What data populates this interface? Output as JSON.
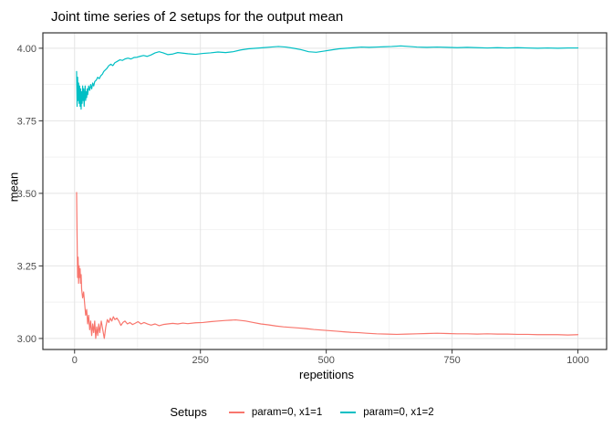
{
  "chart_data": {
    "type": "line",
    "title": "Joint time series of 2 setups for the output mean",
    "xlabel": "repetitions",
    "ylabel": "mean",
    "legend_title": "Setups",
    "legend_position": "bottom",
    "grid": true,
    "xlim": [
      -63,
      1057
    ],
    "ylim": [
      2.962,
      4.053
    ],
    "x_ticks": {
      "values": [
        0,
        250,
        500,
        750,
        1000
      ],
      "labels": [
        "0",
        "250",
        "500",
        "750",
        "1000"
      ]
    },
    "y_ticks": {
      "values": [
        3.0,
        3.25,
        3.5,
        3.75,
        4.0
      ],
      "labels": [
        "3.00",
        "3.25",
        "3.50",
        "3.75",
        "4.00"
      ]
    },
    "x_minor_ticks": [
      125,
      375,
      625,
      875
    ],
    "y_minor_ticks": [
      3.125,
      3.375,
      3.625,
      3.875
    ],
    "series": [
      {
        "name": "param=0, x1=1",
        "color": "#F8766D",
        "points": [
          [
            4,
            3.503
          ],
          [
            5,
            3.35
          ],
          [
            6,
            3.21
          ],
          [
            7,
            3.28
          ],
          [
            8,
            3.19
          ],
          [
            9,
            3.25
          ],
          [
            10,
            3.21
          ],
          [
            11,
            3.24
          ],
          [
            12,
            3.19
          ],
          [
            13,
            3.22
          ],
          [
            14,
            3.17
          ],
          [
            16,
            3.14
          ],
          [
            18,
            3.16
          ],
          [
            20,
            3.12
          ],
          [
            22,
            3.08
          ],
          [
            24,
            3.1
          ],
          [
            26,
            3.05
          ],
          [
            28,
            3.08
          ],
          [
            30,
            3.03
          ],
          [
            32,
            3.06
          ],
          [
            34,
            3.01
          ],
          [
            36,
            3.05
          ],
          [
            38,
            3.02
          ],
          [
            40,
            3.06
          ],
          [
            42,
            3.0
          ],
          [
            44,
            3.04
          ],
          [
            46,
            3.01
          ],
          [
            48,
            3.05
          ],
          [
            50,
            3.02
          ],
          [
            53,
            3.06
          ],
          [
            56,
            3.03
          ],
          [
            59,
            3.0
          ],
          [
            62,
            3.04
          ],
          [
            65,
            3.065
          ],
          [
            68,
            3.055
          ],
          [
            71,
            3.07
          ],
          [
            74,
            3.06
          ],
          [
            77,
            3.075
          ],
          [
            80,
            3.065
          ],
          [
            84,
            3.07
          ],
          [
            88,
            3.06
          ],
          [
            92,
            3.045
          ],
          [
            96,
            3.055
          ],
          [
            100,
            3.06
          ],
          [
            105,
            3.05
          ],
          [
            110,
            3.055
          ],
          [
            115,
            3.048
          ],
          [
            120,
            3.052
          ],
          [
            126,
            3.058
          ],
          [
            132,
            3.05
          ],
          [
            138,
            3.055
          ],
          [
            145,
            3.05
          ],
          [
            152,
            3.046
          ],
          [
            160,
            3.05
          ],
          [
            168,
            3.044
          ],
          [
            176,
            3.048
          ],
          [
            185,
            3.05
          ],
          [
            195,
            3.052
          ],
          [
            205,
            3.05
          ],
          [
            215,
            3.053
          ],
          [
            225,
            3.051
          ],
          [
            240,
            3.054
          ],
          [
            255,
            3.055
          ],
          [
            270,
            3.058
          ],
          [
            285,
            3.06
          ],
          [
            300,
            3.062
          ],
          [
            310,
            3.063
          ],
          [
            320,
            3.064
          ],
          [
            330,
            3.062
          ],
          [
            340,
            3.06
          ],
          [
            355,
            3.055
          ],
          [
            370,
            3.05
          ],
          [
            385,
            3.047
          ],
          [
            400,
            3.043
          ],
          [
            415,
            3.04
          ],
          [
            430,
            3.038
          ],
          [
            445,
            3.036
          ],
          [
            460,
            3.034
          ],
          [
            475,
            3.031
          ],
          [
            490,
            3.029
          ],
          [
            505,
            3.027
          ],
          [
            520,
            3.025
          ],
          [
            535,
            3.023
          ],
          [
            550,
            3.021
          ],
          [
            565,
            3.02
          ],
          [
            580,
            3.018
          ],
          [
            600,
            3.016
          ],
          [
            620,
            3.015
          ],
          [
            640,
            3.014
          ],
          [
            660,
            3.015
          ],
          [
            680,
            3.016
          ],
          [
            700,
            3.017
          ],
          [
            720,
            3.018
          ],
          [
            740,
            3.017
          ],
          [
            760,
            3.016
          ],
          [
            780,
            3.016
          ],
          [
            800,
            3.015
          ],
          [
            820,
            3.016
          ],
          [
            840,
            3.015
          ],
          [
            860,
            3.015
          ],
          [
            880,
            3.014
          ],
          [
            900,
            3.014
          ],
          [
            920,
            3.013
          ],
          [
            940,
            3.013
          ],
          [
            960,
            3.013
          ],
          [
            980,
            3.012
          ],
          [
            1000,
            3.013
          ]
        ]
      },
      {
        "name": "param=0, x1=2",
        "color": "#00BFC4",
        "points": [
          [
            4,
            3.92
          ],
          [
            5,
            3.8
          ],
          [
            6,
            3.9
          ],
          [
            7,
            3.82
          ],
          [
            8,
            3.88
          ],
          [
            9,
            3.81
          ],
          [
            10,
            3.87
          ],
          [
            11,
            3.8
          ],
          [
            12,
            3.86
          ],
          [
            13,
            3.79
          ],
          [
            14,
            3.85
          ],
          [
            15,
            3.81
          ],
          [
            16,
            3.87
          ],
          [
            17,
            3.82
          ],
          [
            18,
            3.86
          ],
          [
            19,
            3.8
          ],
          [
            20,
            3.84
          ],
          [
            21,
            3.87
          ],
          [
            22,
            3.82
          ],
          [
            23,
            3.85
          ],
          [
            24,
            3.83
          ],
          [
            25,
            3.86
          ],
          [
            26,
            3.84
          ],
          [
            28,
            3.87
          ],
          [
            30,
            3.855
          ],
          [
            32,
            3.875
          ],
          [
            34,
            3.86
          ],
          [
            36,
            3.88
          ],
          [
            38,
            3.87
          ],
          [
            40,
            3.885
          ],
          [
            43,
            3.89
          ],
          [
            46,
            3.9
          ],
          [
            49,
            3.895
          ],
          [
            52,
            3.905
          ],
          [
            55,
            3.91
          ],
          [
            58,
            3.92
          ],
          [
            61,
            3.925
          ],
          [
            64,
            3.93
          ],
          [
            68,
            3.94
          ],
          [
            72,
            3.945
          ],
          [
            76,
            3.94
          ],
          [
            80,
            3.95
          ],
          [
            85,
            3.955
          ],
          [
            90,
            3.96
          ],
          [
            95,
            3.958
          ],
          [
            100,
            3.963
          ],
          [
            106,
            3.966
          ],
          [
            112,
            3.963
          ],
          [
            118,
            3.968
          ],
          [
            124,
            3.969
          ],
          [
            130,
            3.972
          ],
          [
            137,
            3.975
          ],
          [
            144,
            3.972
          ],
          [
            152,
            3.977
          ],
          [
            160,
            3.984
          ],
          [
            168,
            3.988
          ],
          [
            176,
            3.984
          ],
          [
            185,
            3.978
          ],
          [
            195,
            3.98
          ],
          [
            205,
            3.985
          ],
          [
            215,
            3.983
          ],
          [
            225,
            3.981
          ],
          [
            240,
            3.979
          ],
          [
            255,
            3.982
          ],
          [
            270,
            3.984
          ],
          [
            285,
            3.987
          ],
          [
            300,
            3.985
          ],
          [
            315,
            3.988
          ],
          [
            330,
            3.994
          ],
          [
            345,
            3.998
          ],
          [
            360,
            4.0
          ],
          [
            375,
            4.002
          ],
          [
            390,
            4.004
          ],
          [
            405,
            4.006
          ],
          [
            420,
            4.004
          ],
          [
            435,
            4.0
          ],
          [
            450,
            3.995
          ],
          [
            465,
            3.988
          ],
          [
            480,
            3.986
          ],
          [
            495,
            3.99
          ],
          [
            510,
            3.994
          ],
          [
            525,
            3.998
          ],
          [
            540,
            4.0
          ],
          [
            555,
            4.002
          ],
          [
            570,
            4.004
          ],
          [
            585,
            4.003
          ],
          [
            600,
            4.004
          ],
          [
            615,
            4.005
          ],
          [
            630,
            4.006
          ],
          [
            648,
            4.008
          ],
          [
            665,
            4.006
          ],
          [
            680,
            4.004
          ],
          [
            700,
            4.003
          ],
          [
            720,
            4.004
          ],
          [
            740,
            4.003
          ],
          [
            760,
            4.002
          ],
          [
            780,
            4.003
          ],
          [
            800,
            4.002
          ],
          [
            820,
            4.001
          ],
          [
            840,
            4.002
          ],
          [
            860,
            4.001
          ],
          [
            880,
            4.002
          ],
          [
            900,
            4.001
          ],
          [
            920,
            4.0
          ],
          [
            940,
            4.001
          ],
          [
            960,
            4.0
          ],
          [
            980,
            4.001
          ],
          [
            1000,
            4.001
          ]
        ]
      }
    ]
  },
  "colors": {
    "panel_border": "#333333",
    "panel_background": "#ffffff",
    "grid_major": "#e4e4e4",
    "grid_minor": "#f2f2f2",
    "tick_mark": "#333333",
    "axis_text": "#4d4d4d",
    "text": "#000000"
  }
}
